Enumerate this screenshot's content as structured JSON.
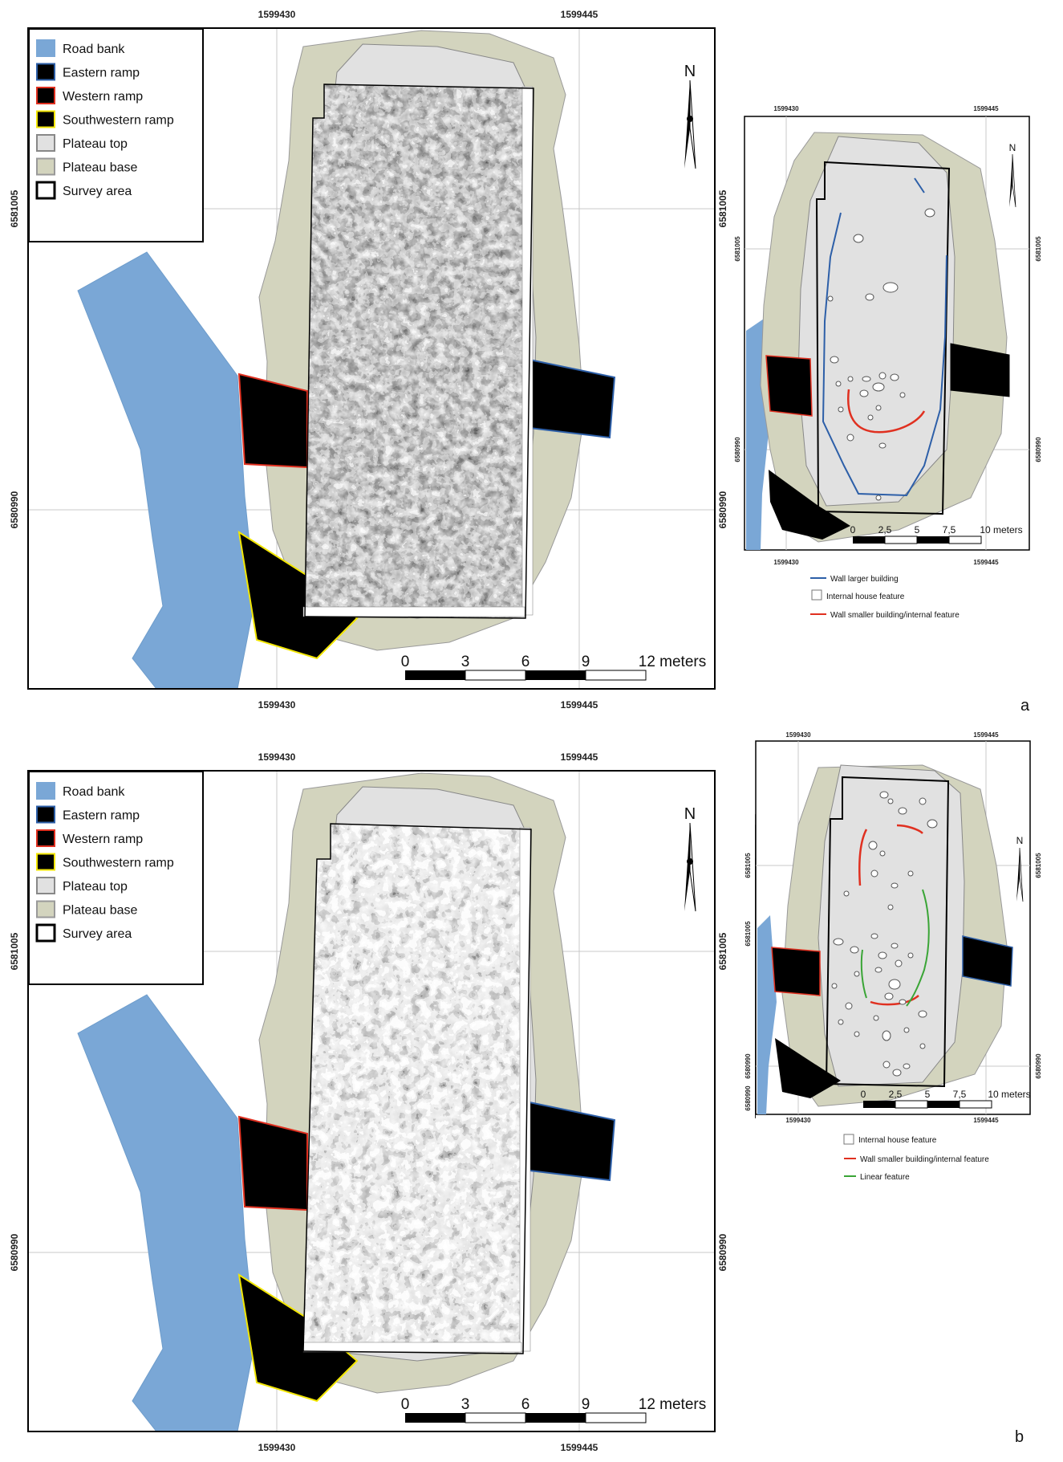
{
  "panels": [
    {
      "letter": "a",
      "main_map": {
        "coords_x": [
          "1599430",
          "1599445"
        ],
        "coords_y": [
          "6581005",
          "6580990"
        ],
        "legend": [
          {
            "label": "Road bank",
            "fill": "#7aa7d6",
            "stroke": "#7aa7d6"
          },
          {
            "label": "Eastern ramp",
            "fill": "#000000",
            "stroke": "#2d5fa8"
          },
          {
            "label": "Western ramp",
            "fill": "#000000",
            "stroke": "#e03020"
          },
          {
            "label": "Southwestern ramp",
            "fill": "#000000",
            "stroke": "#f2e600"
          },
          {
            "label": "Plateau top",
            "fill": "#e1e1e1",
            "stroke": "#888888"
          },
          {
            "label": "Plateau base",
            "fill": "#d3d4be",
            "stroke": "#999999"
          },
          {
            "label": "Survey area",
            "fill": "#ffffff",
            "stroke": "#000000"
          }
        ],
        "north": "N",
        "scale": {
          "ticks": [
            "0",
            "3",
            "6",
            "9"
          ],
          "end_label": "12 meters"
        }
      },
      "inset_map": {
        "coords_x": [
          "1599430",
          "1599445"
        ],
        "coords_y": [
          "6581005",
          "6580990"
        ],
        "north": "N",
        "scale": {
          "ticks": [
            "0",
            "2,5",
            "5",
            "7,5"
          ],
          "end_label": "10 meters"
        },
        "legend": [
          {
            "label": "Wall larger building",
            "type": "line",
            "color": "#2d5fa8"
          },
          {
            "label": "Internal house feature",
            "type": "box",
            "color": "#777777"
          },
          {
            "label": "Wall smaller building/internal feature",
            "type": "line",
            "color": "#e03020"
          }
        ]
      }
    },
    {
      "letter": "b",
      "main_map": {
        "coords_x": [
          "1599430",
          "1599445"
        ],
        "coords_y": [
          "6581005",
          "6580990"
        ],
        "legend": [
          {
            "label": "Road bank",
            "fill": "#7aa7d6",
            "stroke": "#7aa7d6"
          },
          {
            "label": "Eastern ramp",
            "fill": "#000000",
            "stroke": "#2d5fa8"
          },
          {
            "label": "Western ramp",
            "fill": "#000000",
            "stroke": "#e03020"
          },
          {
            "label": "Southwestern ramp",
            "fill": "#000000",
            "stroke": "#f2e600"
          },
          {
            "label": "Plateau top",
            "fill": "#e1e1e1",
            "stroke": "#888888"
          },
          {
            "label": "Plateau base",
            "fill": "#d3d4be",
            "stroke": "#999999"
          },
          {
            "label": "Survey area",
            "fill": "#ffffff",
            "stroke": "#000000"
          }
        ],
        "north": "N",
        "scale": {
          "ticks": [
            "0",
            "3",
            "6",
            "9"
          ],
          "end_label": "12 meters"
        }
      },
      "inset_map": {
        "coords_x": [
          "1599430",
          "1599445"
        ],
        "coords_y": [
          "6581005",
          "6580990"
        ],
        "north": "N",
        "scale": {
          "ticks": [
            "0",
            "2,5",
            "5",
            "7,5"
          ],
          "end_label": "10 meters"
        },
        "legend": [
          {
            "label": "Internal house feature",
            "type": "box",
            "color": "#777777"
          },
          {
            "label": "Wall smaller building/internal feature",
            "type": "line",
            "color": "#e03020"
          },
          {
            "label": "Linear feature",
            "type": "line",
            "color": "#3aa536"
          }
        ]
      }
    }
  ],
  "colors": {
    "road_bank": "#7aa7d6",
    "plateau_base": "#d3d4be",
    "plateau_top": "#e1e1e1",
    "wall_larger": "#2d5fa8",
    "wall_smaller": "#e03020",
    "linear": "#3aa536"
  }
}
